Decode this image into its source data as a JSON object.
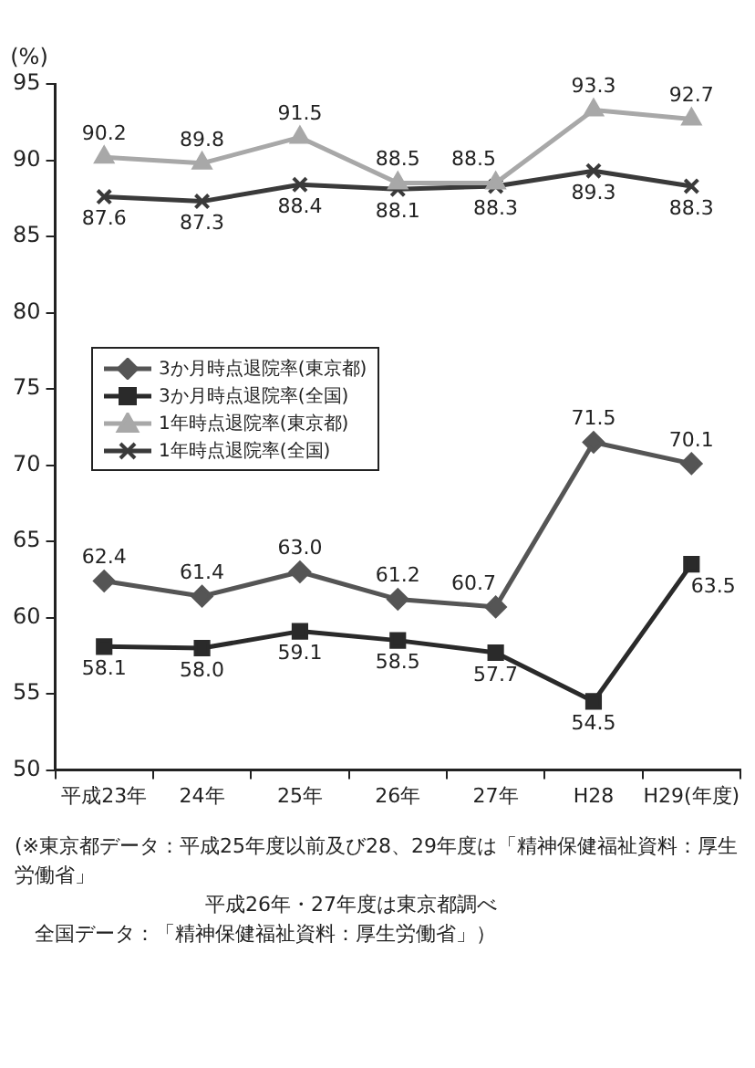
{
  "chart_data": {
    "type": "line",
    "ylabel": "(%)",
    "categories": [
      "平成23年",
      "24年",
      "25年",
      "26年",
      "27年",
      "H28",
      "H29(年度)"
    ],
    "series": [
      {
        "name": "3か月時点退院率(東京都)",
        "color": "#555555",
        "marker": "diamond",
        "values": [
          62.4,
          61.4,
          63.0,
          61.2,
          60.7,
          71.5,
          70.1
        ],
        "value_labels": [
          "62.4",
          "61.4",
          "63.0",
          "61.2",
          "60.7",
          "71.5",
          "70.1"
        ]
      },
      {
        "name": "3か月時点退院率(全国)",
        "color": "#2a2a2a",
        "marker": "square",
        "values": [
          58.1,
          58.0,
          59.1,
          58.5,
          57.7,
          54.5,
          63.5
        ],
        "value_labels": [
          "58.1",
          "58.0",
          "59.1",
          "58.5",
          "57.7",
          "54.5",
          "63.5"
        ]
      },
      {
        "name": "1年時点退院率(東京都)",
        "color": "#a8a8a8",
        "marker": "triangle",
        "values": [
          90.2,
          89.8,
          91.5,
          88.5,
          88.5,
          93.3,
          92.7
        ],
        "value_labels": [
          "90.2",
          "89.8",
          "91.5",
          "88.5",
          "88.5",
          "93.3",
          "92.7"
        ]
      },
      {
        "name": "1年時点退院率(全国)",
        "color": "#3a3a3a",
        "marker": "cross",
        "values": [
          87.6,
          87.3,
          88.4,
          88.1,
          88.3,
          89.3,
          88.3
        ],
        "value_labels": [
          "87.6",
          "87.3",
          "88.4",
          "88.1",
          "88.3",
          "89.3",
          "88.3"
        ]
      }
    ],
    "ylim": [
      50,
      95
    ],
    "yticks": [
      50,
      55,
      60,
      65,
      70,
      75,
      80,
      85,
      90,
      95
    ],
    "grid": false,
    "legend": "center left",
    "line_style": "solid",
    "annotations": [
      "(※東京都データ：平成25年度以前及び28、29年度は「精神保健福祉資料：厚生労働省」",
      "平成26年・27年度は東京都調べ",
      "全国データ：「精神保健福祉資料：厚生労働省」）"
    ]
  }
}
